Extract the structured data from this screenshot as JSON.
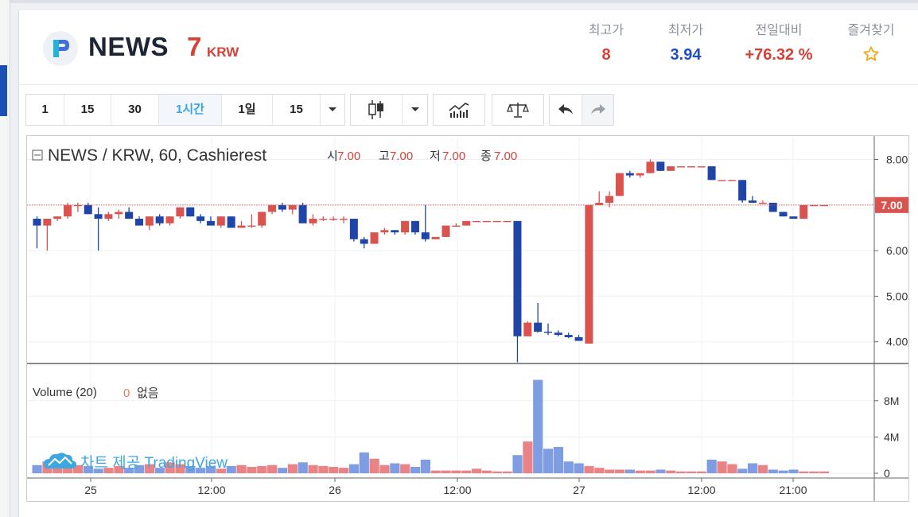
{
  "ticker": {
    "symbol": "NEWS",
    "price": "7",
    "currency": "KRW",
    "stats": [
      {
        "label": "최고가",
        "value": "8",
        "color": "#d74035"
      },
      {
        "label": "최저가",
        "value": "3.94",
        "color": "#1f4fbf"
      },
      {
        "label": "전일대비",
        "value": "+76.32 %",
        "color": "#d74035"
      },
      {
        "label": "즐겨찾기",
        "icon": "star-outline-icon"
      }
    ]
  },
  "toolbar": {
    "intervals": [
      "1",
      "15",
      "30",
      "1시간",
      "1일",
      "15"
    ],
    "active_interval": "1시간",
    "tools": [
      "candlestick-icon",
      "chevron-down-icon",
      "indicators-icon",
      "compare-icon",
      "undo-icon",
      "redo-icon"
    ]
  },
  "chart": {
    "legend": "NEWS / KRW, 60, Cashierest",
    "ohlc": [
      {
        "label": "시",
        "value": "7.00"
      },
      {
        "label": "고",
        "value": "7.00"
      },
      {
        "label": "저",
        "value": "7.00"
      },
      {
        "label": "종",
        "value": "7.00"
      }
    ],
    "price_axis": [
      "8.00",
      "6.00",
      "5.00",
      "4.00"
    ],
    "last_price_label": "7.00",
    "volume_legend": "Volume (20)",
    "volume_value": "0",
    "volume_status": "없음",
    "volume_axis": [
      "8M",
      "4M",
      "0"
    ],
    "time_axis": [
      "25",
      "12:00",
      "26",
      "12:00",
      "27",
      "12:00",
      "21:00"
    ],
    "watermark": "차트 제공 TradingView",
    "up_color": "#d9534f",
    "down_color": "#1f45a8"
  },
  "chart_data": {
    "type": "candlestick",
    "interval": "60",
    "y_range": [
      3.3,
      8.3
    ],
    "volume_range_millions": [
      0,
      10.5
    ],
    "series": [
      {
        "name": "NEWS / KRW",
        "x": "hour index",
        "values": [
          [
            6.7,
            6.75,
            6.05,
            6.55
          ],
          [
            6.55,
            6.7,
            6.0,
            6.7
          ],
          [
            6.7,
            6.75,
            6.65,
            6.75
          ],
          [
            6.75,
            7.05,
            6.7,
            7.0
          ],
          [
            7.0,
            7.05,
            6.85,
            7.0
          ],
          [
            7.0,
            7.05,
            6.8,
            6.8
          ],
          [
            6.8,
            6.95,
            6.0,
            6.7
          ],
          [
            6.7,
            6.85,
            6.65,
            6.8
          ],
          [
            6.8,
            6.9,
            6.7,
            6.85
          ],
          [
            6.85,
            6.95,
            6.7,
            6.7
          ],
          [
            6.7,
            6.75,
            6.55,
            6.55
          ],
          [
            6.55,
            6.75,
            6.45,
            6.75
          ],
          [
            6.75,
            6.8,
            6.55,
            6.6
          ],
          [
            6.6,
            6.75,
            6.55,
            6.75
          ],
          [
            6.75,
            6.95,
            6.7,
            6.95
          ],
          [
            6.95,
            6.95,
            6.75,
            6.75
          ],
          [
            6.75,
            6.8,
            6.6,
            6.65
          ],
          [
            6.65,
            6.75,
            6.55,
            6.55
          ],
          [
            6.55,
            6.75,
            6.5,
            6.75
          ],
          [
            6.75,
            6.75,
            6.5,
            6.5
          ],
          [
            6.5,
            6.65,
            6.5,
            6.55
          ],
          [
            6.55,
            6.8,
            6.5,
            6.55
          ],
          [
            6.55,
            6.85,
            6.5,
            6.85
          ],
          [
            6.85,
            7.0,
            6.8,
            7.0
          ],
          [
            7.0,
            7.05,
            6.85,
            6.9
          ],
          [
            6.9,
            7.0,
            6.8,
            7.0
          ],
          [
            7.0,
            7.05,
            6.6,
            6.6
          ],
          [
            6.6,
            6.8,
            6.55,
            6.7
          ],
          [
            6.7,
            6.75,
            6.65,
            6.7
          ],
          [
            6.7,
            6.75,
            6.65,
            6.7
          ],
          [
            6.7,
            6.75,
            6.6,
            6.7
          ],
          [
            6.7,
            6.7,
            6.2,
            6.25
          ],
          [
            6.25,
            6.3,
            6.05,
            6.15
          ],
          [
            6.15,
            6.4,
            6.15,
            6.4
          ],
          [
            6.4,
            6.5,
            6.35,
            6.45
          ],
          [
            6.45,
            6.45,
            6.35,
            6.4
          ],
          [
            6.4,
            6.65,
            6.35,
            6.65
          ],
          [
            6.65,
            6.65,
            6.35,
            6.4
          ],
          [
            6.4,
            7.0,
            6.2,
            6.25
          ],
          [
            6.25,
            6.3,
            6.25,
            6.3
          ],
          [
            6.3,
            6.55,
            6.3,
            6.55
          ],
          [
            6.55,
            6.6,
            6.55,
            6.55
          ],
          [
            6.55,
            6.65,
            6.55,
            6.65
          ],
          [
            6.65,
            6.65,
            6.65,
            6.65
          ],
          [
            6.65,
            6.65,
            6.65,
            6.65
          ],
          [
            6.65,
            6.65,
            6.65,
            6.65
          ],
          [
            6.65,
            6.65,
            6.65,
            6.65
          ],
          [
            6.65,
            6.65,
            3.55,
            4.12
          ],
          [
            4.12,
            4.45,
            4.12,
            4.42
          ],
          [
            4.42,
            4.85,
            4.2,
            4.22
          ],
          [
            4.22,
            4.4,
            4.15,
            4.2
          ],
          [
            4.2,
            4.25,
            4.12,
            4.15
          ],
          [
            4.15,
            4.2,
            4.08,
            4.1
          ],
          [
            4.1,
            4.15,
            4.02,
            4.02
          ],
          [
            3.96,
            7.0,
            3.96,
            7.0
          ],
          [
            7.0,
            7.3,
            7.0,
            7.05
          ],
          [
            7.05,
            7.3,
            6.95,
            7.2
          ],
          [
            7.2,
            7.7,
            7.2,
            7.7
          ],
          [
            7.7,
            7.75,
            7.6,
            7.65
          ],
          [
            7.65,
            7.7,
            7.6,
            7.7
          ],
          [
            7.7,
            8.0,
            7.7,
            7.95
          ],
          [
            7.95,
            7.95,
            7.75,
            7.75
          ],
          [
            7.75,
            7.85,
            7.75,
            7.85
          ],
          [
            7.85,
            7.85,
            7.85,
            7.85
          ],
          [
            7.85,
            7.85,
            7.85,
            7.85
          ],
          [
            7.85,
            7.85,
            7.85,
            7.85
          ],
          [
            7.85,
            7.85,
            7.55,
            7.55
          ],
          [
            7.55,
            7.55,
            7.55,
            7.55
          ],
          [
            7.55,
            7.55,
            7.55,
            7.55
          ],
          [
            7.55,
            7.55,
            7.05,
            7.1
          ],
          [
            7.1,
            7.2,
            7.05,
            7.05
          ],
          [
            7.05,
            7.1,
            7.05,
            7.05
          ],
          [
            7.05,
            7.05,
            6.85,
            6.85
          ],
          [
            6.85,
            6.85,
            6.75,
            6.75
          ],
          [
            6.75,
            6.75,
            6.7,
            6.7
          ],
          [
            6.7,
            7.0,
            6.7,
            7.0
          ],
          [
            7.0,
            7.0,
            7.0,
            7.0
          ],
          [
            7.0,
            7.0,
            7.0,
            7.0
          ]
        ]
      },
      {
        "name": "Volume (20)",
        "x": "hour index",
        "unit": "M",
        "values": [
          0.9,
          1.3,
          0.6,
          0.7,
          0.9,
          0.8,
          0.5,
          0.6,
          0.8,
          0.6,
          0.9,
          1.0,
          0.6,
          1.2,
          1.0,
          0.8,
          0.6,
          0.8,
          0.5,
          0.8,
          0.9,
          0.7,
          0.8,
          0.9,
          0.6,
          1.0,
          1.2,
          0.9,
          0.8,
          0.7,
          0.6,
          1.0,
          2.3,
          1.6,
          0.9,
          1.1,
          1.0,
          0.7,
          1.5,
          0.3,
          0.3,
          0.3,
          0.3,
          0.5,
          0.3,
          0.2,
          0.2,
          2.0,
          3.5,
          10.3,
          2.7,
          2.9,
          1.3,
          1.1,
          0.8,
          0.6,
          0.4,
          0.4,
          0.4,
          0.3,
          0.3,
          0.4,
          0.3,
          0.2,
          0.2,
          0.2,
          1.5,
          1.3,
          1.0,
          0.5,
          1.1,
          0.9,
          0.4,
          0.3,
          0.4,
          0.2,
          0.2,
          0.2
        ]
      }
    ]
  }
}
